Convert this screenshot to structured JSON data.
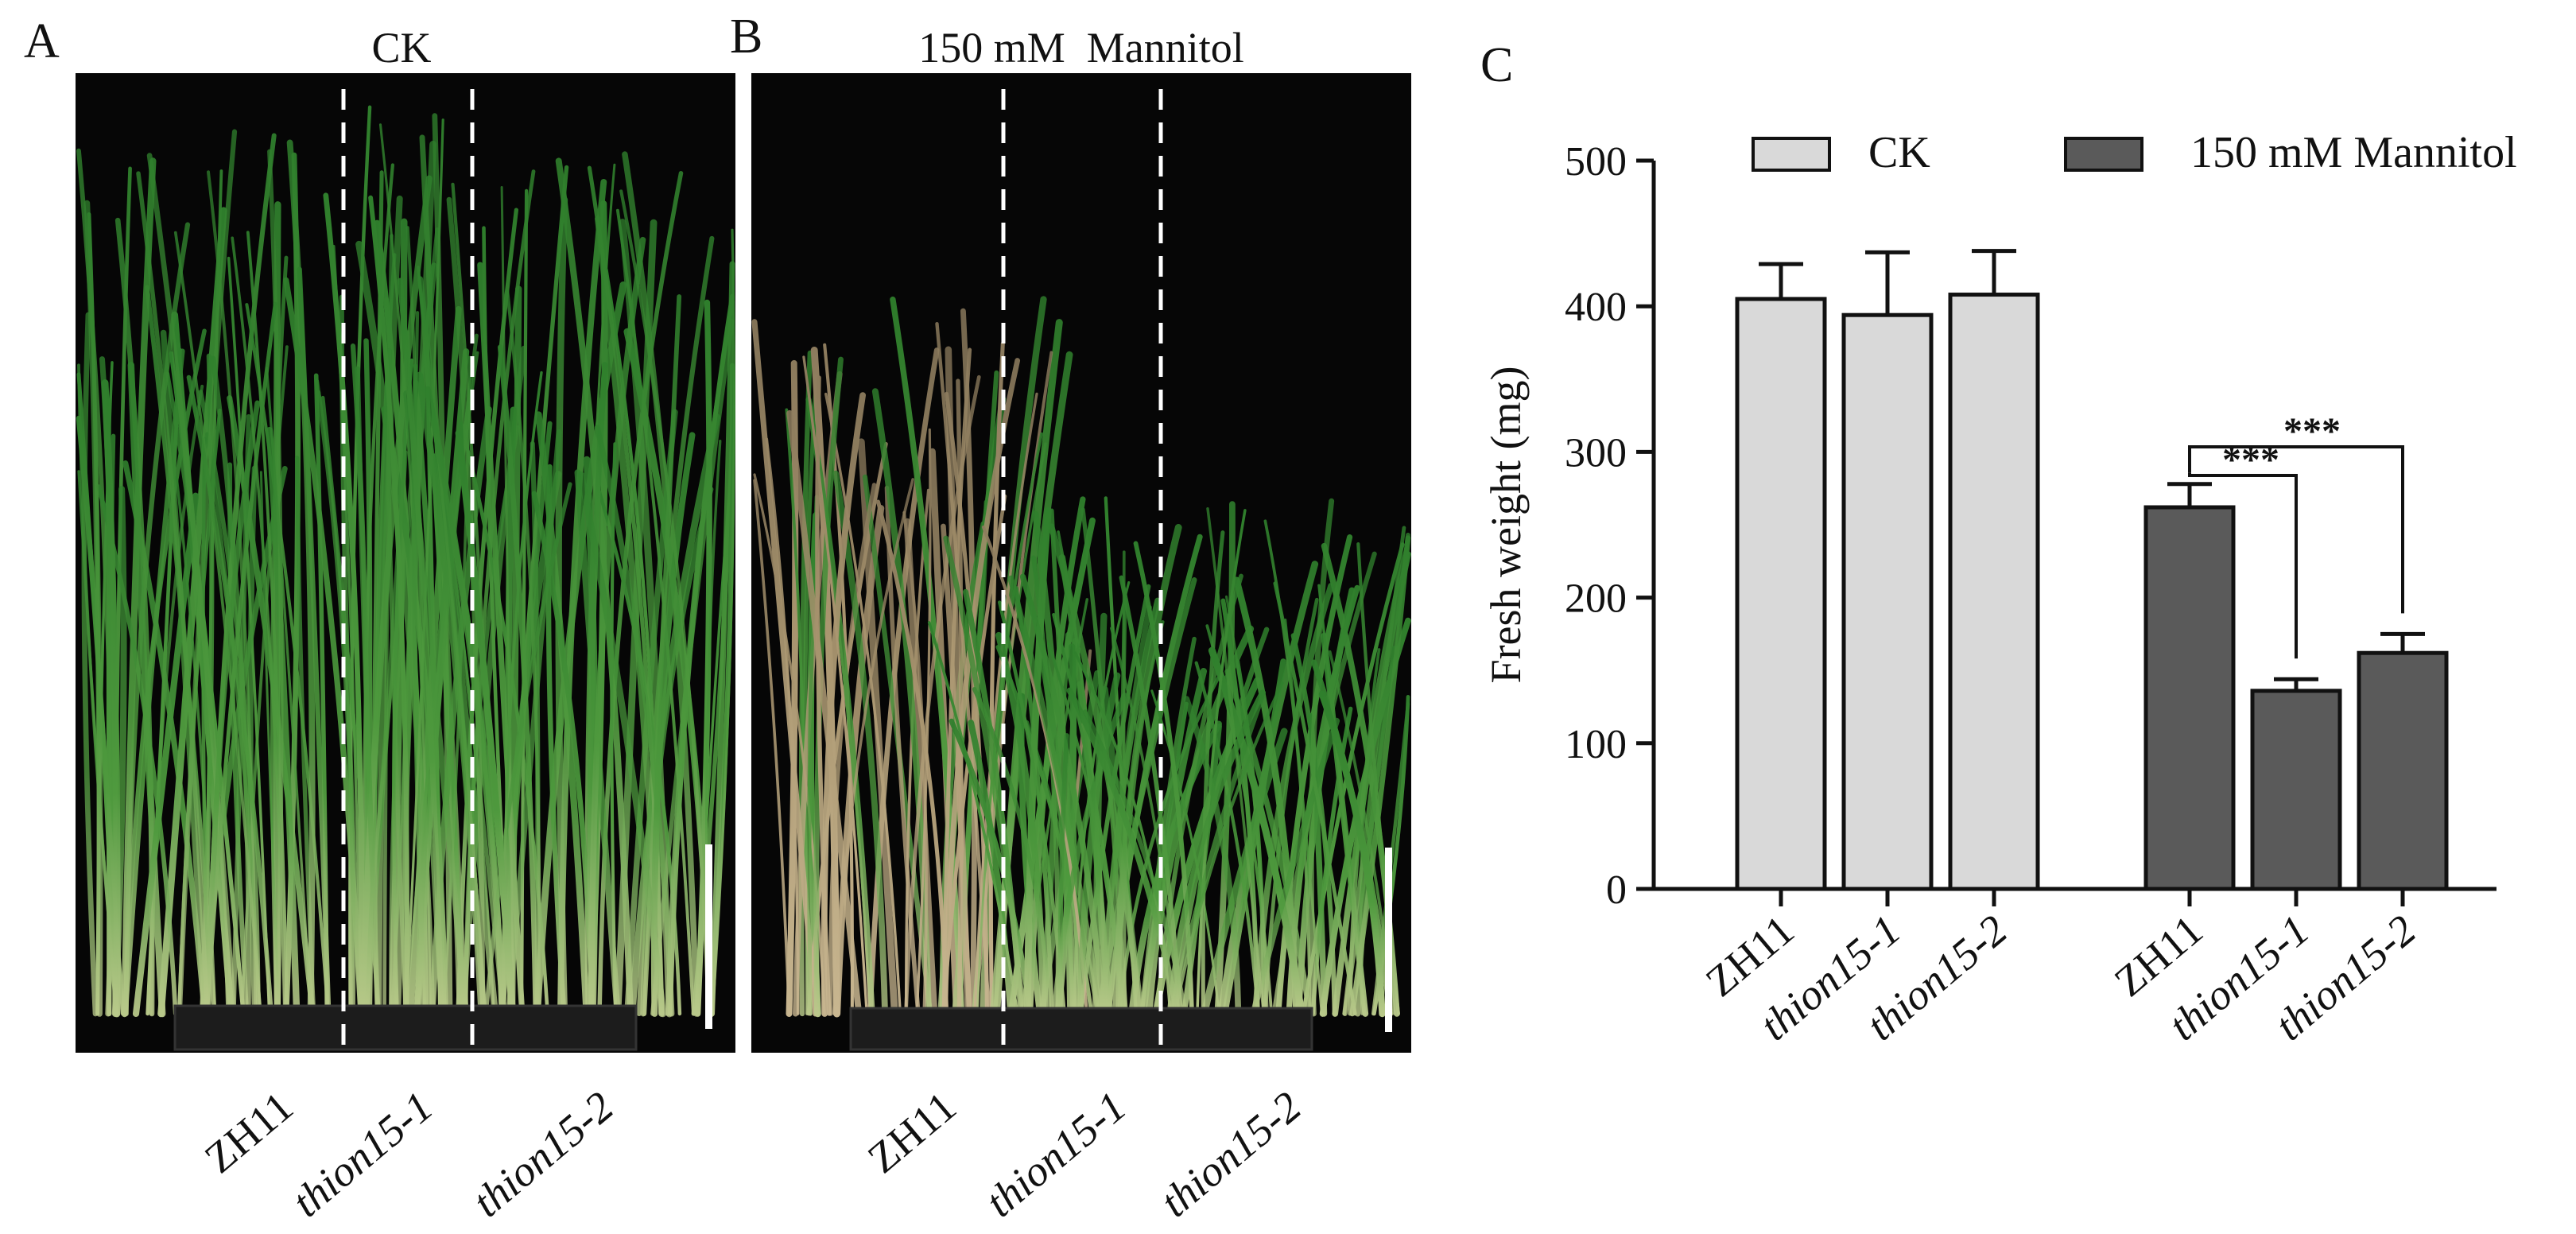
{
  "panel_a": {
    "letter": "A",
    "title": "CK",
    "lane_labels": [
      "ZH11",
      "thion15-1",
      "thion15-2"
    ]
  },
  "panel_b": {
    "letter": "B",
    "title": "150 mM  Mannitol",
    "lane_labels": [
      "ZH11",
      "thion15-1",
      "thion15-2"
    ]
  },
  "panel_c": {
    "letter": "C"
  },
  "colors": {
    "ck_fill": "#d9d9d9",
    "mannitol_fill": "#5a5a5a",
    "photo_bg": "#060606",
    "leaf_green": "#3f8f3a",
    "leaf_dry": "#b8a583"
  },
  "chart_data": {
    "type": "bar",
    "title": "",
    "xlabel": "",
    "ylabel": "Fresh weight (mg)",
    "ylim": [
      0,
      500
    ],
    "yticks": [
      0,
      100,
      200,
      300,
      400,
      500
    ],
    "legend_position": "top",
    "categories": [
      "ZH11",
      "thion15-1",
      "thion15-2"
    ],
    "series": [
      {
        "name": "CK",
        "values": [
          405,
          394,
          408
        ],
        "errors": [
          24,
          43,
          30
        ]
      },
      {
        "name": "150 mM Mannitol",
        "values": [
          262,
          136,
          162
        ],
        "errors": [
          16,
          8,
          13
        ]
      }
    ],
    "significance": [
      {
        "group": "150 mM Mannitol",
        "from": "ZH11",
        "to": "thion15-1",
        "label": "***"
      },
      {
        "group": "150 mM Mannitol",
        "from": "ZH11",
        "to": "thion15-2",
        "label": "***"
      }
    ]
  }
}
